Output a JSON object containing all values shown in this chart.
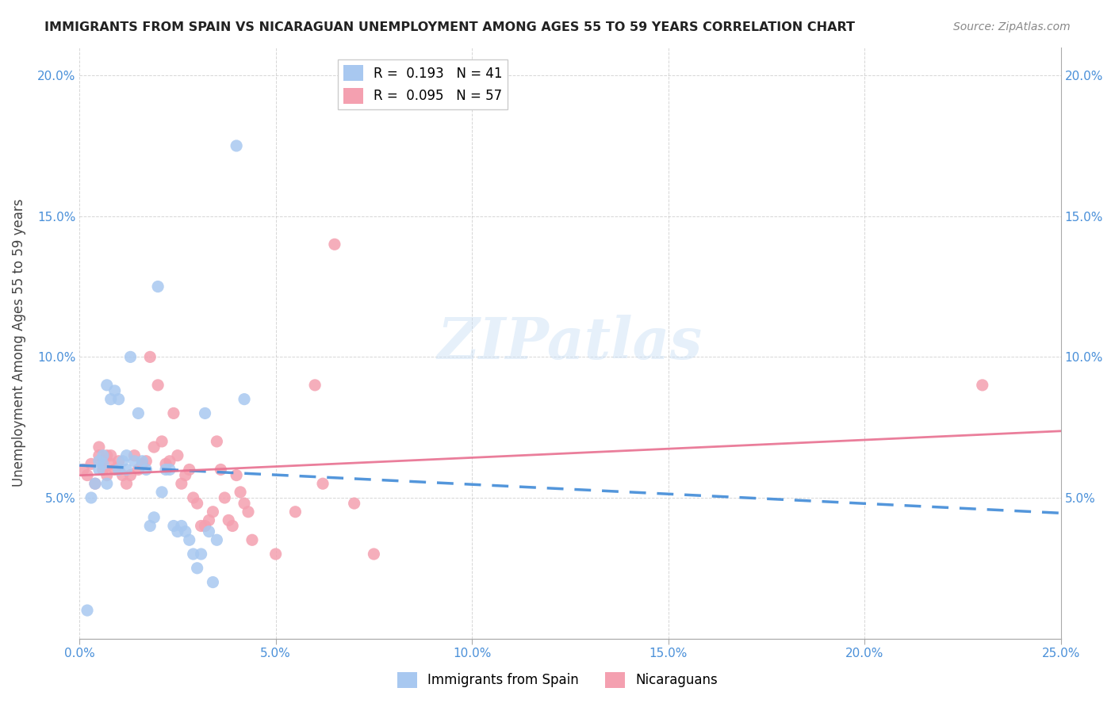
{
  "title": "IMMIGRANTS FROM SPAIN VS NICARAGUAN UNEMPLOYMENT AMONG AGES 55 TO 59 YEARS CORRELATION CHART",
  "source": "Source: ZipAtlas.com",
  "ylabel": "Unemployment Among Ages 55 to 59 years",
  "xlim": [
    0.0,
    0.25
  ],
  "ylim": [
    0.0,
    0.21
  ],
  "xticks": [
    0.0,
    0.05,
    0.1,
    0.15,
    0.2,
    0.25
  ],
  "xticklabels": [
    "0.0%",
    "5.0%",
    "10.0%",
    "15.0%",
    "20.0%",
    "25.0%"
  ],
  "yticks": [
    0.05,
    0.1,
    0.15,
    0.2
  ],
  "yticklabels": [
    "5.0%",
    "10.0%",
    "15.0%",
    "20.0%"
  ],
  "color_spain": "#a8c8f0",
  "color_nicaragua": "#f4a0b0",
  "line_color_spain": "#4a90d9",
  "line_color_nicaragua": "#e87090",
  "R_spain": 0.193,
  "N_spain": 41,
  "R_nicaragua": 0.095,
  "N_nicaragua": 57,
  "watermark": "ZIPatlas",
  "legend_labels": [
    "Immigrants from Spain",
    "Nicaraguans"
  ],
  "spain_scatter_x": [
    0.002,
    0.003,
    0.004,
    0.005,
    0.005,
    0.006,
    0.006,
    0.007,
    0.007,
    0.008,
    0.009,
    0.01,
    0.01,
    0.011,
    0.012,
    0.012,
    0.013,
    0.014,
    0.015,
    0.016,
    0.017,
    0.018,
    0.019,
    0.02,
    0.021,
    0.022,
    0.023,
    0.024,
    0.025,
    0.026,
    0.027,
    0.028,
    0.029,
    0.03,
    0.031,
    0.032,
    0.033,
    0.034,
    0.035,
    0.04,
    0.042
  ],
  "spain_scatter_y": [
    0.01,
    0.05,
    0.055,
    0.06,
    0.063,
    0.062,
    0.065,
    0.055,
    0.09,
    0.085,
    0.088,
    0.085,
    0.06,
    0.063,
    0.065,
    0.06,
    0.1,
    0.063,
    0.08,
    0.063,
    0.06,
    0.04,
    0.043,
    0.125,
    0.052,
    0.06,
    0.06,
    0.04,
    0.038,
    0.04,
    0.038,
    0.035,
    0.03,
    0.025,
    0.03,
    0.08,
    0.038,
    0.02,
    0.035,
    0.175,
    0.085
  ],
  "nicaragua_scatter_x": [
    0.001,
    0.002,
    0.003,
    0.004,
    0.005,
    0.005,
    0.006,
    0.006,
    0.007,
    0.007,
    0.008,
    0.008,
    0.009,
    0.01,
    0.01,
    0.011,
    0.012,
    0.013,
    0.014,
    0.015,
    0.016,
    0.017,
    0.018,
    0.019,
    0.02,
    0.021,
    0.022,
    0.023,
    0.024,
    0.025,
    0.026,
    0.027,
    0.028,
    0.029,
    0.03,
    0.031,
    0.032,
    0.033,
    0.034,
    0.035,
    0.036,
    0.037,
    0.038,
    0.039,
    0.04,
    0.041,
    0.042,
    0.043,
    0.044,
    0.05,
    0.055,
    0.06,
    0.062,
    0.065,
    0.07,
    0.075,
    0.23
  ],
  "nicaragua_scatter_y": [
    0.06,
    0.058,
    0.062,
    0.055,
    0.065,
    0.068,
    0.06,
    0.063,
    0.065,
    0.058,
    0.062,
    0.065,
    0.06,
    0.06,
    0.063,
    0.058,
    0.055,
    0.058,
    0.065,
    0.06,
    0.062,
    0.063,
    0.1,
    0.068,
    0.09,
    0.07,
    0.062,
    0.063,
    0.08,
    0.065,
    0.055,
    0.058,
    0.06,
    0.05,
    0.048,
    0.04,
    0.04,
    0.042,
    0.045,
    0.07,
    0.06,
    0.05,
    0.042,
    0.04,
    0.058,
    0.052,
    0.048,
    0.045,
    0.035,
    0.03,
    0.045,
    0.09,
    0.055,
    0.14,
    0.048,
    0.03,
    0.09
  ]
}
